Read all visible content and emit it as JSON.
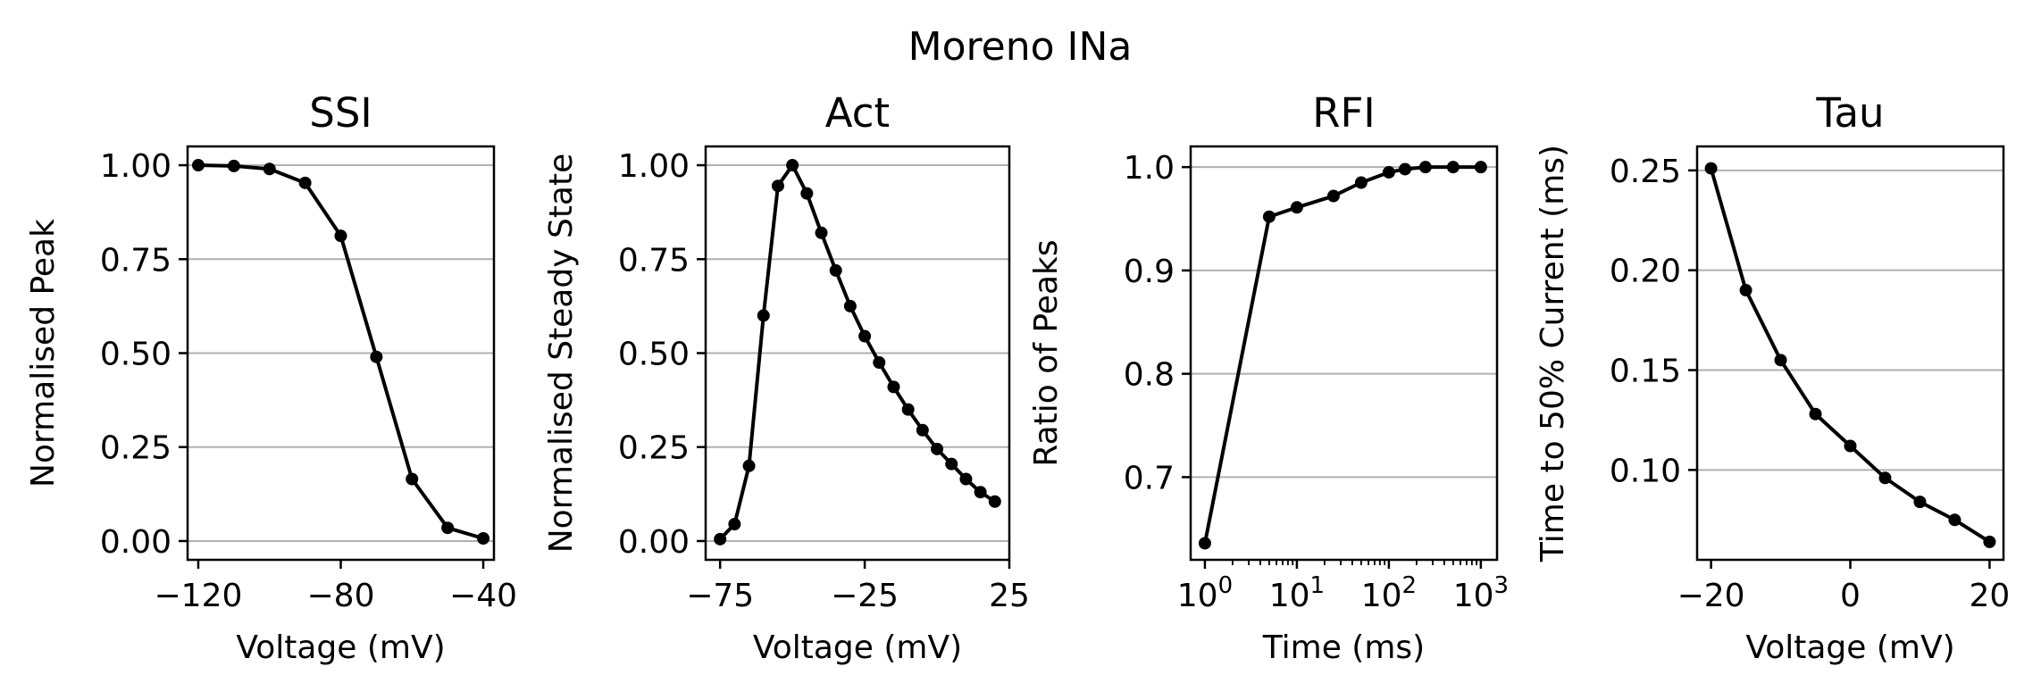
{
  "figure": {
    "title": "Moreno INa"
  },
  "chart_data": [
    {
      "type": "line",
      "title": "SSI",
      "xlabel": "Voltage (mV)",
      "ylabel": "Normalised Peak",
      "xscale": "linear",
      "xlim": [
        -123,
        -37
      ],
      "ylim": [
        -0.05,
        1.05
      ],
      "xticks": [
        -120,
        -80,
        -40
      ],
      "xtick_labels": [
        "−120",
        "−80",
        "−40"
      ],
      "yticks": [
        0.0,
        0.25,
        0.5,
        0.75,
        1.0
      ],
      "ytick_labels": [
        "0.00",
        "0.25",
        "0.50",
        "0.75",
        "1.00"
      ],
      "grid": "y",
      "series": [
        {
          "x": [
            -120,
            -110,
            -100,
            -90,
            -80,
            -70,
            -60,
            -50,
            -40
          ],
          "y": [
            1.0,
            0.998,
            0.99,
            0.953,
            0.812,
            0.49,
            0.165,
            0.035,
            0.007
          ]
        }
      ]
    },
    {
      "type": "line",
      "title": "Act",
      "xlabel": "Voltage (mV)",
      "ylabel": "Normalised Steady State",
      "xscale": "linear",
      "xlim": [
        -80,
        25
      ],
      "ylim": [
        -0.05,
        1.05
      ],
      "xticks": [
        -75,
        -25,
        25
      ],
      "xtick_labels": [
        "−75",
        "−25",
        "25"
      ],
      "yticks": [
        0.0,
        0.25,
        0.5,
        0.75,
        1.0
      ],
      "ytick_labels": [
        "0.00",
        "0.25",
        "0.50",
        "0.75",
        "1.00"
      ],
      "grid": "y",
      "series": [
        {
          "x": [
            -75,
            -70,
            -65,
            -60,
            -55,
            -50,
            -45,
            -40,
            -35,
            -30,
            -25,
            -20,
            -15,
            -10,
            -5,
            0,
            5,
            10,
            15,
            20
          ],
          "y": [
            0.005,
            0.045,
            0.2,
            0.6,
            0.945,
            1.0,
            0.925,
            0.82,
            0.72,
            0.625,
            0.545,
            0.475,
            0.41,
            0.35,
            0.295,
            0.245,
            0.205,
            0.165,
            0.13,
            0.105
          ]
        }
      ]
    },
    {
      "type": "line",
      "title": "RFI",
      "xlabel": "Time (ms)",
      "ylabel": "Ratio of Peaks",
      "xscale": "log",
      "xlim": [
        0.7,
        1500
      ],
      "ylim": [
        0.62,
        1.02
      ],
      "xticks": [
        1,
        10,
        100,
        1000
      ],
      "xtick_labels": [
        {
          "base": "10",
          "exp": "0"
        },
        {
          "base": "10",
          "exp": "1"
        },
        {
          "base": "10",
          "exp": "2"
        },
        {
          "base": "10",
          "exp": "3"
        }
      ],
      "yticks": [
        0.7,
        0.8,
        0.9,
        1.0
      ],
      "ytick_labels": [
        "0.7",
        "0.8",
        "0.9",
        "1.0"
      ],
      "grid": "y",
      "series": [
        {
          "x": [
            1,
            5,
            10,
            25,
            50,
            100,
            150,
            250,
            500,
            1000
          ],
          "y": [
            0.636,
            0.952,
            0.961,
            0.972,
            0.985,
            0.995,
            0.998,
            1.0,
            1.0,
            1.0
          ]
        }
      ]
    },
    {
      "type": "line",
      "title": "Tau",
      "xlabel": "Voltage (mV)",
      "ylabel": "Time to 50% Current (ms)",
      "xscale": "linear",
      "xlim": [
        -22,
        22
      ],
      "ylim": [
        0.055,
        0.262
      ],
      "xticks": [
        -20,
        0,
        20
      ],
      "xtick_labels": [
        "−20",
        "0",
        "20"
      ],
      "yticks": [
        0.1,
        0.15,
        0.2,
        0.25
      ],
      "ytick_labels": [
        "0.10",
        "0.15",
        "0.20",
        "0.25"
      ],
      "grid": "y",
      "series": [
        {
          "x": [
            -20,
            -15,
            -10,
            -5,
            0,
            5,
            10,
            15,
            20
          ],
          "y": [
            0.251,
            0.19,
            0.155,
            0.128,
            0.112,
            0.096,
            0.084,
            0.075,
            0.064
          ]
        }
      ]
    }
  ]
}
